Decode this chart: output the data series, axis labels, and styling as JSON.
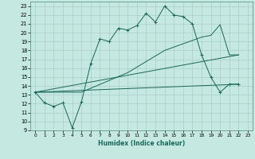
{
  "xlabel": "Humidex (Indice chaleur)",
  "bg_color": "#c5e8e0",
  "grid_color": "#a8cfc8",
  "line_color": "#1a6858",
  "xlim": [
    -0.5,
    23.5
  ],
  "ylim": [
    9,
    23.5
  ],
  "xticks": [
    0,
    1,
    2,
    3,
    4,
    5,
    6,
    7,
    8,
    9,
    10,
    11,
    12,
    13,
    14,
    15,
    16,
    17,
    18,
    19,
    20,
    21,
    22,
    23
  ],
  "yticks": [
    9,
    10,
    11,
    12,
    13,
    14,
    15,
    16,
    17,
    18,
    19,
    20,
    21,
    22,
    23
  ],
  "line1_x": [
    0,
    1,
    2,
    3,
    4,
    5,
    6,
    7,
    8,
    9,
    10,
    11,
    12,
    13,
    14,
    15,
    16,
    17,
    18,
    19,
    20,
    21,
    22
  ],
  "line1_y": [
    13.3,
    12.1,
    11.7,
    12.1,
    9.3,
    12.2,
    16.5,
    19.3,
    19.0,
    20.5,
    20.3,
    20.8,
    22.2,
    21.2,
    23.0,
    22.0,
    21.8,
    21.0,
    17.5,
    15.0,
    13.3,
    14.2,
    14.2
  ],
  "line2_x": [
    0,
    5,
    10,
    14,
    18,
    19,
    20,
    21,
    22
  ],
  "line2_y": [
    13.3,
    13.3,
    15.5,
    18.0,
    19.5,
    19.7,
    20.9,
    17.5,
    17.5
  ],
  "line3_x": [
    0,
    22
  ],
  "line3_y": [
    13.3,
    17.5
  ],
  "line4_x": [
    0,
    22
  ],
  "line4_y": [
    13.3,
    14.2
  ]
}
